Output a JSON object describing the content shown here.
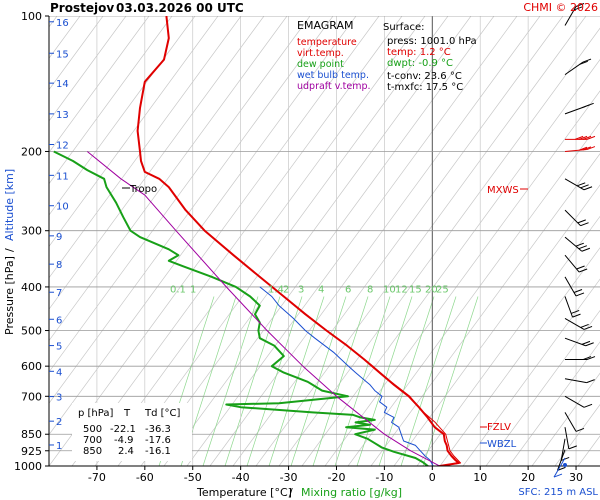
{
  "header": {
    "station": "Prostejov",
    "datetime": "03.03.2026 00 UTC",
    "credit": "CHMI © 2026"
  },
  "legend": {
    "title": "EMAGRAM",
    "items": [
      {
        "label": "temperature",
        "color": "#e00000"
      },
      {
        "label": "virt.temp.",
        "color": "#e00000"
      },
      {
        "label": "dew point",
        "color": "#18a018"
      },
      {
        "label": "wet bulb temp.",
        "color": "#1a4fd0"
      },
      {
        "label": "udpraft v.temp.",
        "color": "#a000a0"
      }
    ]
  },
  "surface": {
    "title": "Surface:",
    "press": "press: 1001.0 hPa",
    "temp": "temp: 1.2 °C",
    "dwpt": "dwpt: -0.9 °C",
    "tconv": "t-conv: 23.6 °C",
    "tmxfc": "t-mxfc: 17.5 °C"
  },
  "table": {
    "headers": [
      "p [hPa]",
      "T",
      "Td [°C]"
    ],
    "rows": [
      [
        "500",
        "-22.1",
        "-36.3"
      ],
      [
        "700",
        "-4.9",
        "-17.6"
      ],
      [
        "850",
        "2.4",
        "-16.1"
      ]
    ]
  },
  "axes": {
    "y_label_left": "Pressure [hPa]",
    "y_label_sep": "/",
    "y_label_right": "Altitude [km]",
    "x_label_left": "Temperature [°C]",
    "x_label_sep": "/",
    "x_label_right": "Mixing ratio [g/kg]",
    "sfc_note": "SFC: 215 m ASL"
  },
  "annotations": {
    "tropo": "Tropo",
    "mxws": "MXWS",
    "fzlv": "FZLV",
    "wbzl": "WBZL"
  },
  "chart_data": {
    "type": "line",
    "y_scale": "log-pressure",
    "ylim_hpa": [
      1000,
      100
    ],
    "xlim_c": [
      -80,
      35
    ],
    "pressure_ticks": [
      100,
      200,
      300,
      400,
      500,
      600,
      700,
      850,
      925,
      1000
    ],
    "temperature_ticks": [
      -70,
      -60,
      -50,
      -40,
      -30,
      -20,
      -10,
      0,
      10,
      20,
      30
    ],
    "altitude_ticks_km": [
      1,
      2,
      3,
      4,
      5,
      6,
      7,
      8,
      9,
      10,
      11,
      12,
      13,
      14,
      15,
      16
    ],
    "altitude_tick_pressures": [
      898,
      795,
      701,
      616,
      540,
      472,
      411,
      356,
      308,
      264,
      226,
      193,
      165,
      141,
      121,
      103
    ],
    "mixing_ratio_labels": [
      "0.1",
      "1",
      "1.4",
      "2",
      "3",
      "4",
      "6",
      "8",
      "10",
      "12",
      "15",
      "20",
      "25"
    ],
    "series": [
      {
        "name": "temperature",
        "color": "#e00000",
        "points": [
          [
            1001,
            1.2
          ],
          [
            985,
            5.5
          ],
          [
            970,
            4.8
          ],
          [
            950,
            4.0
          ],
          [
            925,
            3.2
          ],
          [
            900,
            3.0
          ],
          [
            880,
            2.6
          ],
          [
            850,
            2.4
          ],
          [
            820,
            0.5
          ],
          [
            780,
            -1.0
          ],
          [
            740,
            -2.8
          ],
          [
            700,
            -4.9
          ],
          [
            660,
            -8.0
          ],
          [
            620,
            -11.0
          ],
          [
            580,
            -14.2
          ],
          [
            540,
            -17.8
          ],
          [
            500,
            -22.1
          ],
          [
            460,
            -26.5
          ],
          [
            420,
            -31.0
          ],
          [
            380,
            -36.0
          ],
          [
            340,
            -41.5
          ],
          [
            300,
            -47.5
          ],
          [
            270,
            -51.5
          ],
          [
            240,
            -55.0
          ],
          [
            230,
            -57.0
          ],
          [
            222,
            -60.0
          ],
          [
            210,
            -60.8
          ],
          [
            200,
            -61.0
          ],
          [
            180,
            -61.5
          ],
          [
            160,
            -61.0
          ],
          [
            140,
            -60.0
          ],
          [
            125,
            -56.0
          ],
          [
            112,
            -55.0
          ],
          [
            100,
            -55.5
          ]
        ]
      },
      {
        "name": "virt.temp.",
        "color": "#e00000",
        "points": [
          [
            1001,
            1.6
          ],
          [
            985,
            5.9
          ],
          [
            950,
            4.5
          ],
          [
            925,
            3.7
          ],
          [
            900,
            3.4
          ],
          [
            850,
            2.8
          ],
          [
            800,
            0.6
          ],
          [
            750,
            -2.4
          ],
          [
            700,
            -4.7
          ],
          [
            650,
            -8.6
          ],
          [
            600,
            -12.4
          ],
          [
            550,
            -16.8
          ],
          [
            500,
            -22.0
          ],
          [
            450,
            -27.5
          ],
          [
            400,
            -33.4
          ],
          [
            350,
            -40.1
          ],
          [
            300,
            -47.4
          ]
        ]
      },
      {
        "name": "dew point",
        "color": "#18a018",
        "points": [
          [
            1001,
            -0.9
          ],
          [
            980,
            -2.0
          ],
          [
            960,
            -3.5
          ],
          [
            930,
            -8.0
          ],
          [
            910,
            -10.5
          ],
          [
            890,
            -12.0
          ],
          [
            870,
            -13.5
          ],
          [
            850,
            -16.1
          ],
          [
            830,
            -12.0
          ],
          [
            820,
            -18.0
          ],
          [
            810,
            -13.0
          ],
          [
            800,
            -16.0
          ],
          [
            790,
            -12.0
          ],
          [
            780,
            -15.0
          ],
          [
            770,
            -16.5
          ],
          [
            760,
            -25.0
          ],
          [
            740,
            -40.0
          ],
          [
            730,
            -43.0
          ],
          [
            725,
            -32.0
          ],
          [
            700,
            -17.6
          ],
          [
            680,
            -23.0
          ],
          [
            650,
            -26.0
          ],
          [
            620,
            -31.0
          ],
          [
            600,
            -33.5
          ],
          [
            570,
            -31.0
          ],
          [
            540,
            -33.0
          ],
          [
            520,
            -36.0
          ],
          [
            500,
            -36.3
          ],
          [
            480,
            -36.0
          ],
          [
            460,
            -37.0
          ],
          [
            440,
            -36.0
          ],
          [
            420,
            -38.0
          ],
          [
            400,
            -41.0
          ],
          [
            380,
            -46.0
          ],
          [
            360,
            -52.0
          ],
          [
            350,
            -55.0
          ],
          [
            340,
            -53.0
          ],
          [
            330,
            -55.0
          ],
          [
            310,
            -61.0
          ],
          [
            300,
            -63.0
          ],
          [
            280,
            -64.5
          ],
          [
            260,
            -66.0
          ],
          [
            240,
            -68.0
          ],
          [
            230,
            -68.5
          ],
          [
            220,
            -72.0
          ],
          [
            210,
            -75.0
          ],
          [
            200,
            -79.0
          ]
        ]
      },
      {
        "name": "wet bulb temp.",
        "color": "#1a4fd0",
        "points": [
          [
            1001,
            0.2
          ],
          [
            970,
            -0.5
          ],
          [
            950,
            -1.5
          ],
          [
            925,
            -2.5
          ],
          [
            900,
            -3.5
          ],
          [
            880,
            -6.0
          ],
          [
            850,
            -6.5
          ],
          [
            820,
            -7.0
          ],
          [
            800,
            -8.5
          ],
          [
            780,
            -8.0
          ],
          [
            760,
            -10.0
          ],
          [
            740,
            -9.5
          ],
          [
            720,
            -11.0
          ],
          [
            700,
            -10.5
          ],
          [
            680,
            -12.0
          ],
          [
            660,
            -13.0
          ],
          [
            640,
            -14.5
          ],
          [
            620,
            -16.0
          ],
          [
            600,
            -17.5
          ],
          [
            560,
            -20.5
          ],
          [
            520,
            -24.5
          ],
          [
            500,
            -26.5
          ],
          [
            470,
            -29.0
          ],
          [
            440,
            -32.0
          ],
          [
            420,
            -33.5
          ],
          [
            400,
            -36.0
          ]
        ]
      },
      {
        "name": "udpraft v.temp.",
        "color": "#a000a0",
        "points": [
          [
            1001,
            1.6
          ],
          [
            925,
            -4.5
          ],
          [
            850,
            -10.0
          ],
          [
            700,
            -20.0
          ],
          [
            600,
            -27.0
          ],
          [
            500,
            -34.5
          ],
          [
            400,
            -43.0
          ],
          [
            300,
            -53.5
          ],
          [
            250,
            -60.0
          ],
          [
            230,
            -65.0
          ],
          [
            200,
            -72.0
          ]
        ]
      }
    ]
  }
}
